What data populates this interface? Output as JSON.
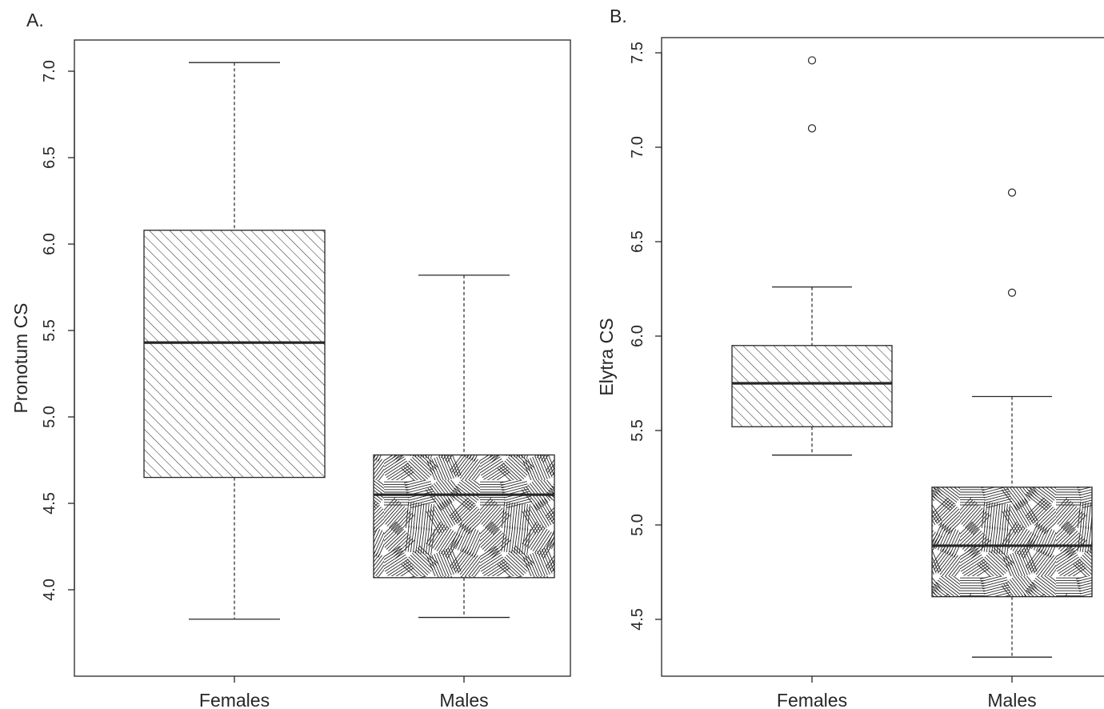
{
  "chart_data": [
    {
      "type": "box",
      "panel_label": "A.",
      "ylabel": "Pronotum CS",
      "xlabel": "",
      "ylim": [
        3.5,
        7.2
      ],
      "yticks": [
        4.0,
        4.5,
        5.0,
        5.5,
        6.0,
        6.5,
        7.0
      ],
      "ytick_labels": [
        "4.0",
        "4.5",
        "5.0",
        "5.5",
        "6.0",
        "6.5",
        "7.0"
      ],
      "categories": [
        "Females",
        "Males"
      ],
      "boxes": [
        {
          "category": "Females",
          "whisker_low": 3.83,
          "q1": 4.65,
          "median": 5.43,
          "q3": 6.08,
          "whisker_high": 7.05,
          "outliers": [],
          "fill_pattern": "diagonal-hatch"
        },
        {
          "category": "Males",
          "whisker_low": 3.84,
          "q1": 4.07,
          "median": 4.55,
          "q3": 4.78,
          "whisker_high": 5.82,
          "outliers": [],
          "fill_pattern": "random-line-texture"
        }
      ],
      "grid": false
    },
    {
      "type": "box",
      "panel_label": "B.",
      "ylabel": "Elytra  CS",
      "xlabel": "",
      "ylim": [
        4.2,
        7.58
      ],
      "yticks": [
        4.5,
        5.0,
        5.5,
        6.0,
        6.5,
        7.0,
        7.5
      ],
      "ytick_labels": [
        "4.5",
        "5.0",
        "5.5",
        "6.0",
        "6.5",
        "7.0",
        "7.5"
      ],
      "categories": [
        "Females",
        "Males"
      ],
      "boxes": [
        {
          "category": "Females",
          "whisker_low": 5.37,
          "q1": 5.52,
          "median": 5.75,
          "q3": 5.95,
          "whisker_high": 6.26,
          "outliers": [
            7.1,
            7.46
          ],
          "fill_pattern": "diagonal-hatch"
        },
        {
          "category": "Males",
          "whisker_low": 4.3,
          "q1": 4.62,
          "median": 4.89,
          "q3": 5.2,
          "whisker_high": 5.68,
          "outliers": [
            6.23,
            6.76
          ],
          "fill_pattern": "random-line-texture"
        }
      ],
      "grid": false
    }
  ]
}
